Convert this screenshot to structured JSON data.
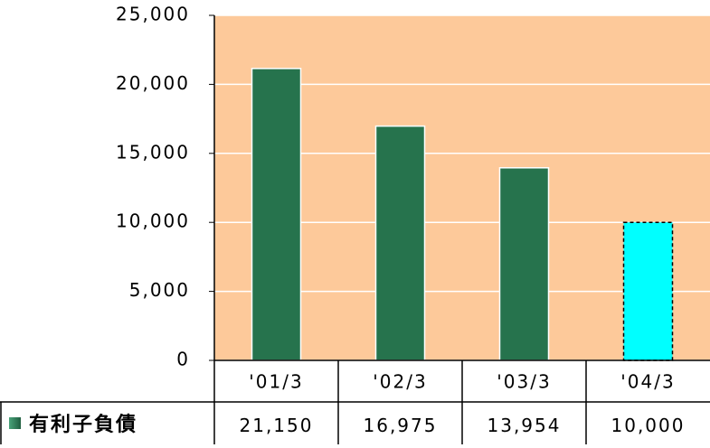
{
  "chart_data": {
    "type": "bar",
    "categories": [
      "'01/3",
      "'02/3",
      "'03/3",
      "'04/3"
    ],
    "series": [
      {
        "name": "有利子負債",
        "color": "#26734d",
        "values": [
          21150,
          16975,
          13954,
          10000
        ],
        "value_labels": [
          "21,150",
          "16,975",
          "13,954",
          "10,000"
        ],
        "colors": [
          "#26734d",
          "#26734d",
          "#26734d",
          "#00ffff"
        ],
        "dashed": [
          false,
          false,
          false,
          true
        ]
      }
    ],
    "ylim": [
      0,
      25000
    ],
    "yticks": [
      0,
      {
        "value": 5000,
        "label": "5,000"
      },
      {
        "value": 10000,
        "label": "10,000"
      },
      {
        "value": 15000,
        "label": "15,000"
      },
      {
        "value": 20000,
        "label": "20,000"
      },
      {
        "value": 25000,
        "label": "25,000"
      }
    ],
    "grid": true,
    "background": "#fdc99a"
  }
}
